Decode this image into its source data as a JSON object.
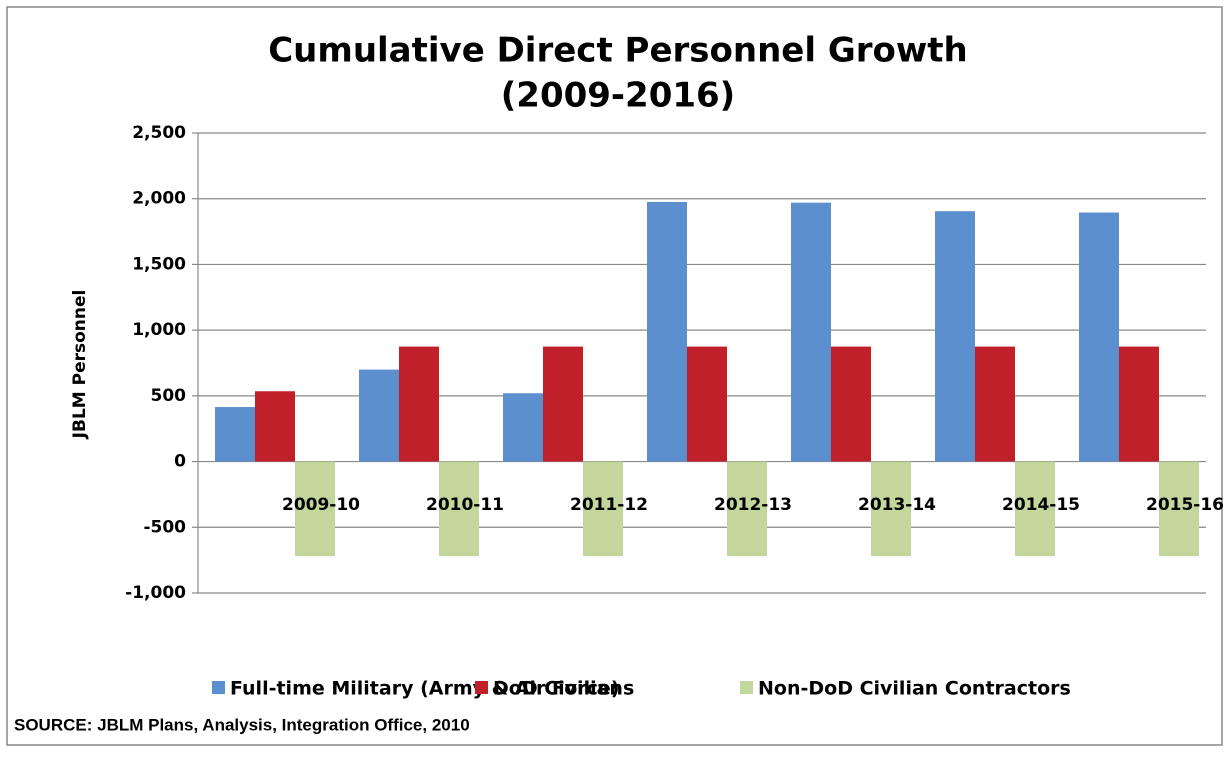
{
  "chart_data": {
    "type": "bar",
    "title": [
      "Cumulative Direct Personnel Growth",
      "(2009-2016)"
    ],
    "ylabel": "JBLM Personnel",
    "categories": [
      "2009-10",
      "2010-11",
      "2011-12",
      "2012-13",
      "2013-14",
      "2014-15",
      "2015-16"
    ],
    "series": [
      {
        "name": "Full-time Military (Army & Air Force)",
        "color": "#5b8fce",
        "values": [
          415,
          700,
          520,
          1975,
          1970,
          1905,
          1895
        ]
      },
      {
        "name": "DoD Civilians",
        "color": "#c0202a",
        "values": [
          535,
          875,
          875,
          875,
          875,
          875,
          875
        ]
      },
      {
        "name": "Non-DoD Civilian Contractors",
        "color": "#c3d69b",
        "values": [
          -720,
          -720,
          -720,
          -720,
          -720,
          -720,
          -720
        ]
      }
    ],
    "ylim": [
      -1000,
      2500
    ],
    "yticks": [
      {
        "value": -1000,
        "label": "-1,000"
      },
      -500,
      0,
      500,
      {
        "value": 1000,
        "label": "1,000"
      },
      {
        "value": 1500,
        "label": "1,500"
      },
      {
        "value": 2000,
        "label": "2,000"
      },
      {
        "value": 2500,
        "label": "2,500"
      }
    ],
    "grid": true,
    "legend": "bottom",
    "source": "SOURCE: JBLM Plans, Analysis, Integration Office, 2010"
  }
}
